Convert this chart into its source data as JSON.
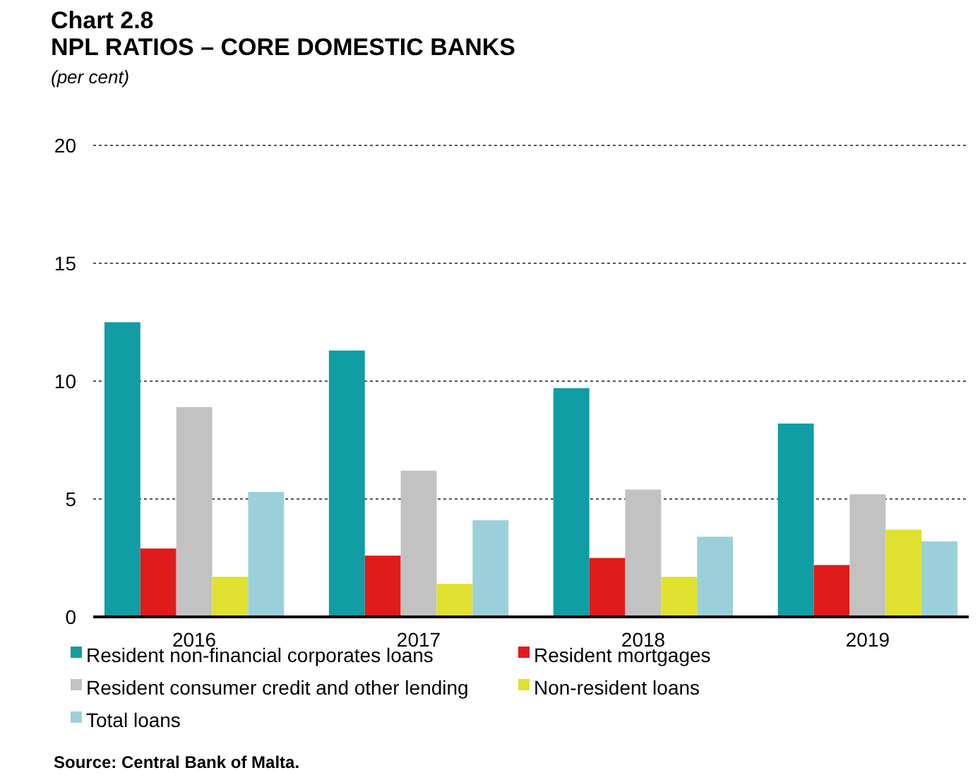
{
  "chart_data": {
    "type": "bar",
    "title": "Chart 2.8",
    "subtitle": "NPL RATIOS – CORE DOMESTIC BANKS",
    "ylabel": "(per cent)",
    "categories": [
      "2016",
      "2017",
      "2018",
      "2019"
    ],
    "series": [
      {
        "name": "Resident non-financial corporates loans",
        "color": "#109da3",
        "values": [
          12.5,
          11.3,
          9.7,
          8.2
        ]
      },
      {
        "name": "Resident mortgages",
        "color": "#e01b1b",
        "values": [
          2.9,
          2.6,
          2.5,
          2.2
        ]
      },
      {
        "name": "Resident consumer credit and other lending",
        "color": "#c2c2c2",
        "values": [
          8.9,
          6.2,
          5.4,
          5.2
        ]
      },
      {
        "name": "Non-resident loans",
        "color": "#e0e030",
        "values": [
          1.7,
          1.4,
          1.7,
          3.7
        ]
      },
      {
        "name": "Total loans",
        "color": "#9bd0da",
        "values": [
          5.3,
          4.1,
          3.4,
          3.2
        ]
      }
    ],
    "ylim": [
      0,
      20
    ],
    "yticks": [
      0,
      5,
      10,
      15,
      20
    ],
    "grid": "y",
    "legend": "bottom",
    "annotations": [
      "Source: Central Bank of Malta."
    ]
  }
}
